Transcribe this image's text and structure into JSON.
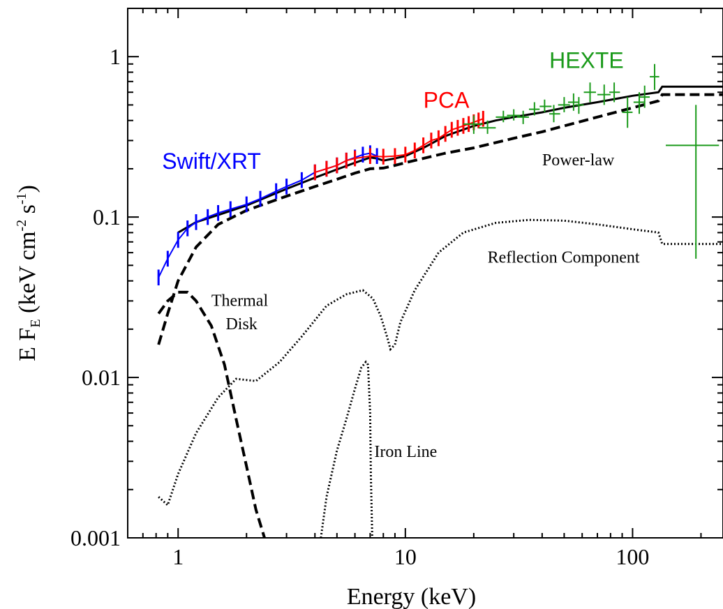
{
  "chart_data": {
    "type": "line",
    "title": "",
    "xlabel": "Energy (keV)",
    "ylabel": {
      "prefix": "E F",
      "sub": "E",
      "mid1": " (keV cm",
      "sup1": "-2",
      "mid2": " s",
      "sup2": "-1",
      "end": ")"
    },
    "xscale": "log",
    "yscale": "log",
    "xlim": [
      0.6,
      250
    ],
    "ylim": [
      0.001,
      2
    ],
    "x_ticks": [
      {
        "value": 1,
        "label": "1"
      },
      {
        "value": 10,
        "label": "10"
      },
      {
        "value": 100,
        "label": "100"
      }
    ],
    "y_ticks": [
      {
        "value": 0.001,
        "label": "0.001"
      },
      {
        "value": 0.01,
        "label": "0.01"
      },
      {
        "value": 0.1,
        "label": "0.1"
      },
      {
        "value": 1,
        "label": "1"
      }
    ],
    "grid": false,
    "annotations": [
      {
        "id": "swift-xrt",
        "text": "Swift/XRT",
        "x": 0.85,
        "y": 0.2,
        "color": "#0000ff",
        "style": "color"
      },
      {
        "id": "pca",
        "text": "PCA",
        "x": 12,
        "y": 0.48,
        "color": "#ff0000",
        "style": "color"
      },
      {
        "id": "hexte",
        "text": "HEXTE",
        "x": 43,
        "y": 0.85,
        "color": "#1a9a1a",
        "style": "color"
      },
      {
        "id": "power-law",
        "text": "Power-law",
        "x": 40,
        "y": 0.21,
        "color": "#000000",
        "style": "black"
      },
      {
        "id": "reflection",
        "text": "Reflection Component",
        "x": 23,
        "y": 0.052,
        "color": "#000000",
        "style": "black"
      },
      {
        "id": "thermal",
        "text": "Thermal",
        "x": 1.4,
        "y": 0.028,
        "color": "#000000",
        "style": "black"
      },
      {
        "id": "disk",
        "text": "Disk",
        "x": 1.62,
        "y": 0.02,
        "color": "#000000",
        "style": "black"
      },
      {
        "id": "iron-line",
        "text": "Iron Line",
        "x": 7.3,
        "y": 0.0032,
        "color": "#000000",
        "style": "black"
      }
    ],
    "series": [
      {
        "id": "total-model",
        "style": "solid",
        "color": "#000000",
        "x": [
          1.0,
          1.2,
          1.5,
          2,
          3,
          4,
          5,
          6,
          7,
          7.5,
          8,
          9,
          10,
          12,
          15,
          20,
          25,
          30,
          40,
          50,
          70,
          100,
          130,
          135,
          250
        ],
        "y": [
          0.08,
          0.093,
          0.103,
          0.118,
          0.15,
          0.176,
          0.198,
          0.218,
          0.235,
          0.232,
          0.225,
          0.232,
          0.24,
          0.27,
          0.32,
          0.37,
          0.4,
          0.42,
          0.45,
          0.48,
          0.52,
          0.57,
          0.6,
          0.65,
          0.65
        ]
      },
      {
        "id": "power-law",
        "style": "dashed",
        "color": "#000000",
        "x": [
          0.82,
          0.9,
          1.0,
          1.2,
          1.5,
          2,
          3,
          4,
          5,
          6,
          7,
          8,
          9,
          10,
          12,
          15,
          20,
          30,
          40,
          50,
          70,
          100,
          130,
          135,
          250
        ],
        "y": [
          0.016,
          0.025,
          0.04,
          0.065,
          0.09,
          0.11,
          0.135,
          0.155,
          0.172,
          0.188,
          0.2,
          0.202,
          0.21,
          0.218,
          0.232,
          0.25,
          0.27,
          0.31,
          0.34,
          0.37,
          0.42,
          0.48,
          0.53,
          0.58,
          0.58
        ]
      },
      {
        "id": "thermal-disk",
        "style": "dashed",
        "color": "#000000",
        "x": [
          0.82,
          0.9,
          1.0,
          1.1,
          1.2,
          1.4,
          1.6,
          1.8,
          2.0,
          2.2,
          2.4
        ],
        "y": [
          0.025,
          0.03,
          0.034,
          0.034,
          0.03,
          0.021,
          0.012,
          0.0055,
          0.0028,
          0.0015,
          0.001
        ]
      },
      {
        "id": "reflection",
        "style": "dotted",
        "color": "#000000",
        "x": [
          0.82,
          0.9,
          1.0,
          1.2,
          1.5,
          1.8,
          2.2,
          2.8,
          3.5,
          4.5,
          5.5,
          6.5,
          7.2,
          7.8,
          8.3,
          8.6,
          9.0,
          9.5,
          11,
          14,
          18,
          25,
          35,
          50,
          70,
          100,
          130,
          135,
          250
        ],
        "y": [
          0.0018,
          0.0016,
          0.0025,
          0.0045,
          0.0075,
          0.0098,
          0.0095,
          0.0125,
          0.018,
          0.028,
          0.033,
          0.035,
          0.031,
          0.024,
          0.018,
          0.015,
          0.016,
          0.022,
          0.035,
          0.06,
          0.08,
          0.092,
          0.096,
          0.095,
          0.09,
          0.084,
          0.08,
          0.068,
          0.068
        ]
      },
      {
        "id": "iron-line",
        "style": "dotted",
        "color": "#000000",
        "x": [
          4.25,
          4.5,
          5.0,
          5.5,
          6.0,
          6.4,
          6.7,
          6.85,
          7.0,
          7.05,
          7.15
        ],
        "y": [
          0.001,
          0.0018,
          0.0035,
          0.0055,
          0.0085,
          0.0115,
          0.0125,
          0.012,
          0.006,
          0.0025,
          0.001
        ]
      },
      {
        "id": "swift-xrt-data",
        "style": "data",
        "color": "#0000ff",
        "x": [
          0.82,
          0.9,
          1.0,
          1.1,
          1.2,
          1.35,
          1.5,
          1.7,
          2.0,
          2.3,
          2.7,
          3.0,
          3.5,
          4.0,
          4.5,
          5.0,
          5.5,
          6.0,
          6.5,
          7.0,
          7.5
        ],
        "y": [
          0.042,
          0.055,
          0.072,
          0.085,
          0.093,
          0.1,
          0.106,
          0.112,
          0.12,
          0.13,
          0.145,
          0.155,
          0.17,
          0.19,
          0.2,
          0.21,
          0.225,
          0.235,
          0.245,
          0.25,
          0.24
        ]
      },
      {
        "id": "pca-data",
        "style": "data",
        "color": "#ff0000",
        "x": [
          4.0,
          4.5,
          5.0,
          5.5,
          6.0,
          7.0,
          8.0,
          9.0,
          10,
          11,
          12,
          13,
          14,
          15,
          16,
          17,
          18,
          19,
          20,
          21,
          22
        ],
        "y": [
          0.19,
          0.2,
          0.21,
          0.225,
          0.232,
          0.24,
          0.238,
          0.24,
          0.245,
          0.26,
          0.28,
          0.3,
          0.31,
          0.33,
          0.35,
          0.36,
          0.37,
          0.38,
          0.39,
          0.4,
          0.41
        ]
      },
      {
        "id": "hexte-data",
        "style": "cross",
        "color": "#1a9a1a",
        "points": [
          {
            "x": 20,
            "y": 0.38,
            "xerr": [
              18,
              22
            ],
            "yerr": [
              0.33,
              0.43
            ]
          },
          {
            "x": 23,
            "y": 0.36,
            "xerr": [
              21,
              25
            ],
            "yerr": [
              0.33,
              0.4
            ]
          },
          {
            "x": 27,
            "y": 0.42,
            "xerr": [
              25,
              29
            ],
            "yerr": [
              0.39,
              0.46
            ]
          },
          {
            "x": 30,
            "y": 0.43,
            "xerr": [
              28,
              32
            ],
            "yerr": [
              0.4,
              0.47
            ]
          },
          {
            "x": 33,
            "y": 0.42,
            "xerr": [
              31,
              35
            ],
            "yerr": [
              0.38,
              0.46
            ]
          },
          {
            "x": 37,
            "y": 0.47,
            "xerr": [
              35,
              39
            ],
            "yerr": [
              0.43,
              0.52
            ]
          },
          {
            "x": 41,
            "y": 0.49,
            "xerr": [
              39,
              44
            ],
            "yerr": [
              0.45,
              0.54
            ]
          },
          {
            "x": 45,
            "y": 0.44,
            "xerr": [
              43,
              48
            ],
            "yerr": [
              0.39,
              0.5
            ]
          },
          {
            "x": 50,
            "y": 0.5,
            "xerr": [
              47,
              53
            ],
            "yerr": [
              0.45,
              0.56
            ]
          },
          {
            "x": 55,
            "y": 0.52,
            "xerr": [
              52,
              58
            ],
            "yerr": [
              0.46,
              0.59
            ]
          },
          {
            "x": 58,
            "y": 0.5,
            "xerr": [
              56,
              61
            ],
            "yerr": [
              0.44,
              0.56
            ]
          },
          {
            "x": 65,
            "y": 0.6,
            "xerr": [
              61,
              69
            ],
            "yerr": [
              0.52,
              0.69
            ]
          },
          {
            "x": 75,
            "y": 0.58,
            "xerr": [
              70,
              80
            ],
            "yerr": [
              0.5,
              0.67
            ]
          },
          {
            "x": 83,
            "y": 0.6,
            "xerr": [
              79,
              88
            ],
            "yerr": [
              0.52,
              0.69
            ]
          },
          {
            "x": 95,
            "y": 0.45,
            "xerr": [
              90,
              100
            ],
            "yerr": [
              0.36,
              0.56
            ]
          },
          {
            "x": 107,
            "y": 0.52,
            "xerr": [
              101,
              113
            ],
            "yerr": [
              0.44,
              0.6
            ]
          },
          {
            "x": 113,
            "y": 0.56,
            "xerr": [
              107,
              119
            ],
            "yerr": [
              0.48,
              0.66
            ]
          },
          {
            "x": 125,
            "y": 0.75,
            "xerr": [
              119,
              131
            ],
            "yerr": [
              0.62,
              0.9
            ]
          },
          {
            "x": 190,
            "y": 0.28,
            "xerr": [
              140,
              240
            ],
            "yerr": [
              0.055,
              0.5
            ]
          }
        ]
      }
    ]
  }
}
